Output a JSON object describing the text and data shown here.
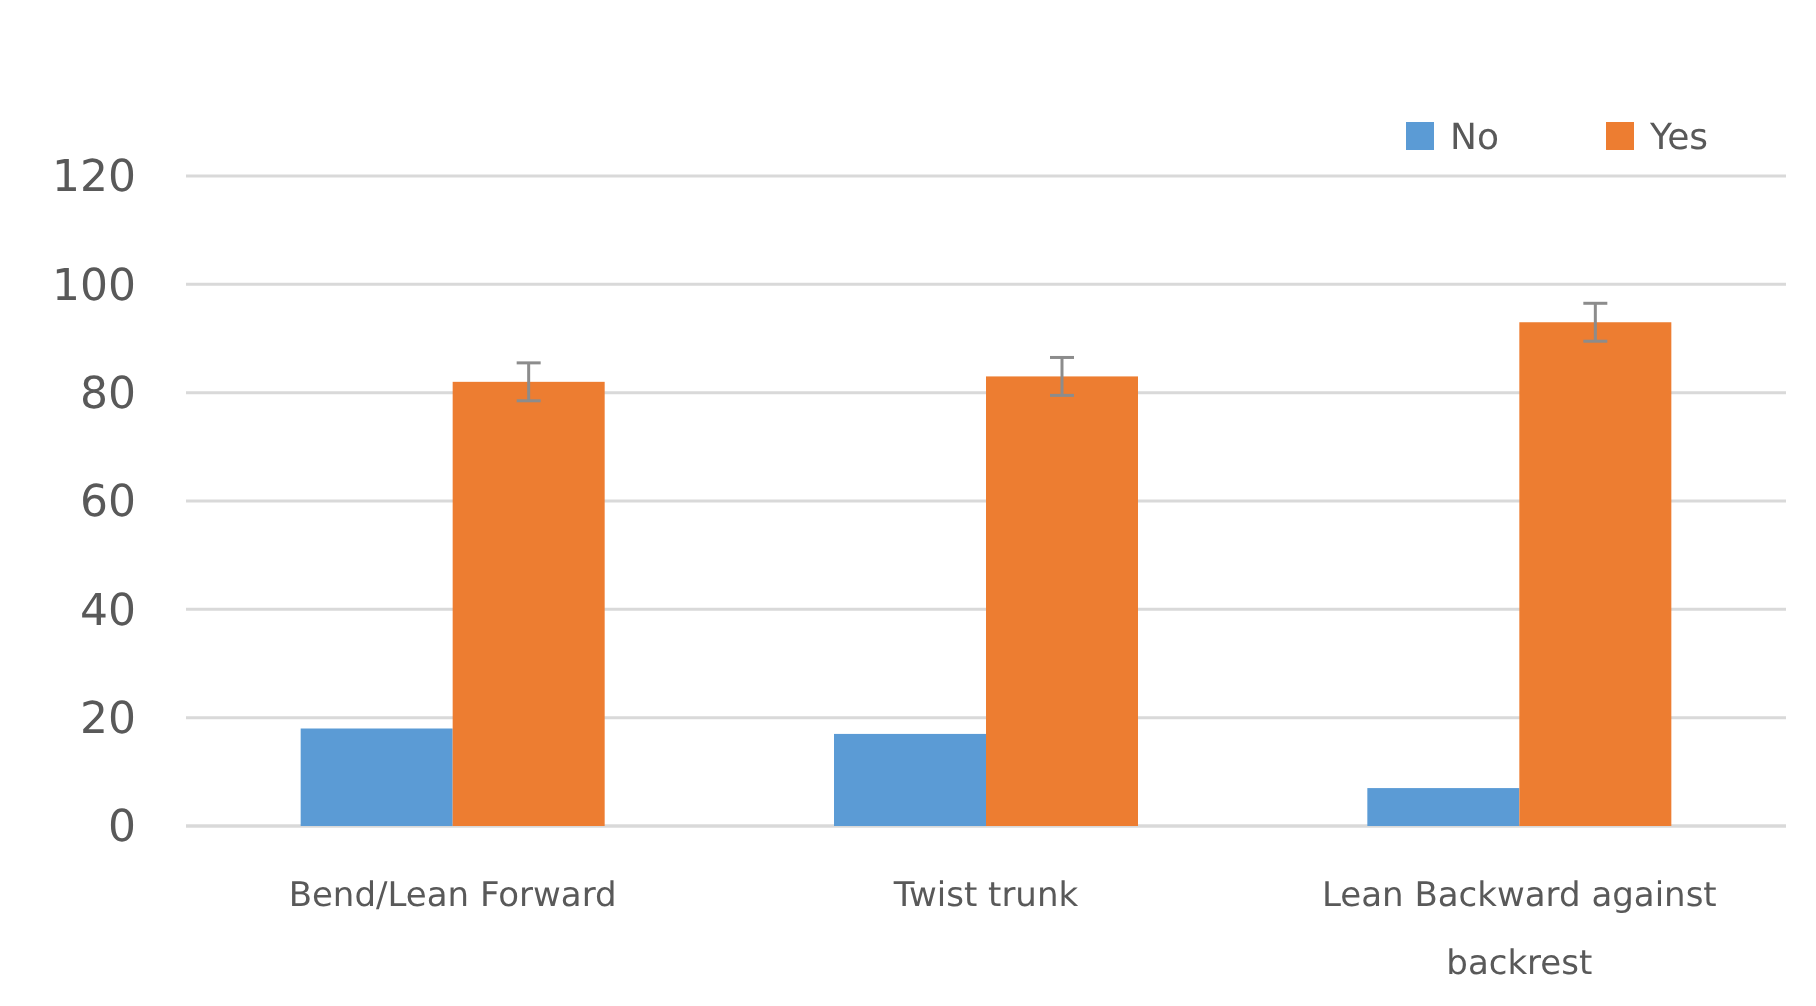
{
  "chart_data": {
    "type": "bar",
    "categories": [
      "Bend/Lean Forward",
      "Twist trunk",
      "Lean Backward against backrest"
    ],
    "series": [
      {
        "name": "No",
        "color": "#5b9bd5",
        "values": [
          18,
          17,
          7
        ]
      },
      {
        "name": "Yes",
        "color": "#ed7d31",
        "values": [
          82,
          83,
          93
        ],
        "errors": [
          3.5,
          3.5,
          3.5
        ]
      }
    ],
    "ylim": [
      0,
      120
    ],
    "yticks": [
      0,
      20,
      40,
      60,
      80,
      100,
      120
    ],
    "grid": "y",
    "legend": "top right"
  }
}
